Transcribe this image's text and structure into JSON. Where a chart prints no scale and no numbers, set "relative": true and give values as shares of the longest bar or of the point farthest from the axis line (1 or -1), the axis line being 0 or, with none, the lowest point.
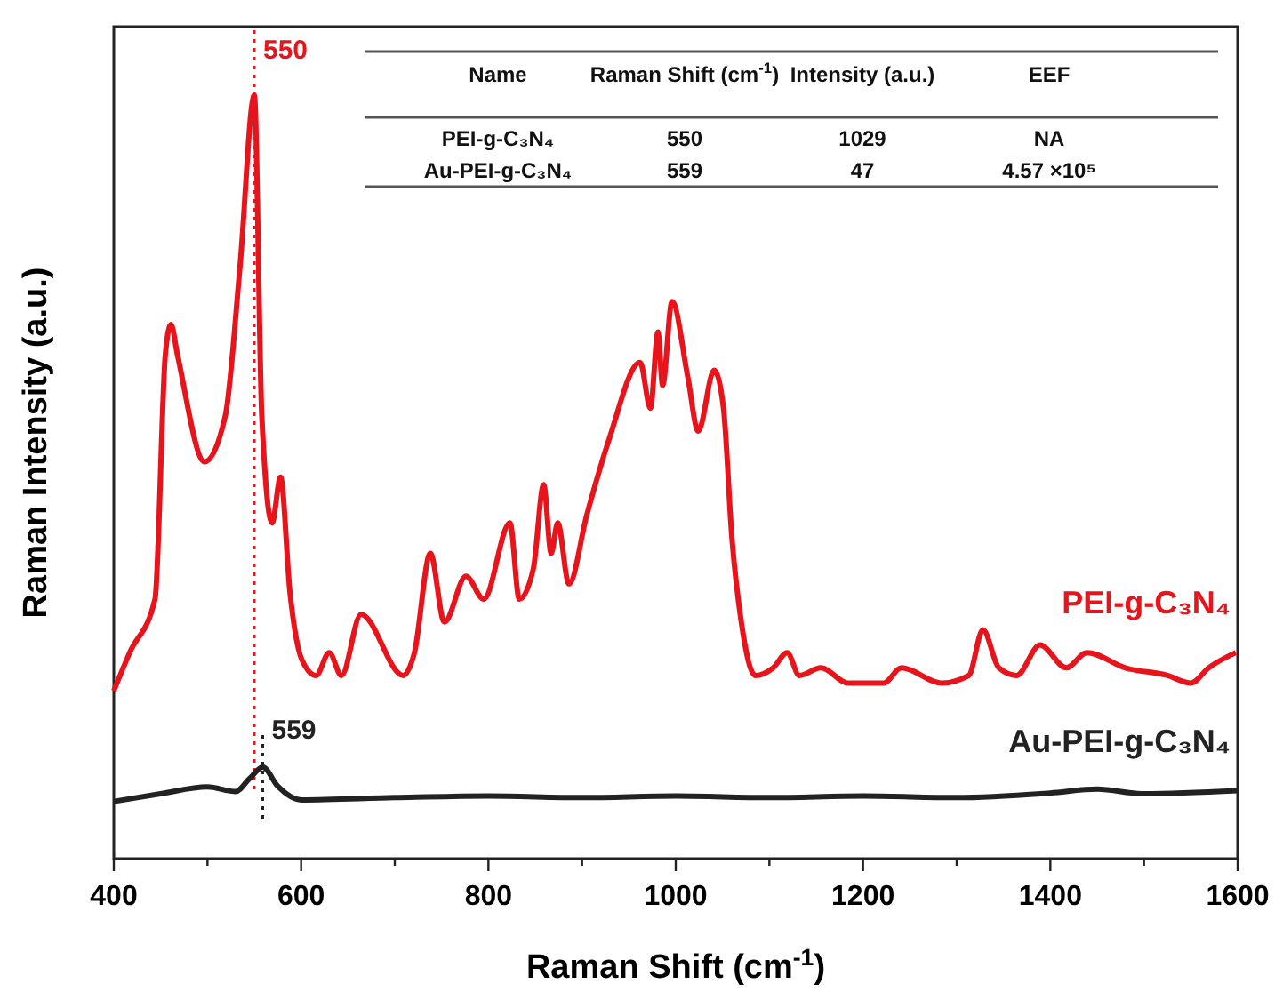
{
  "chart_data": {
    "type": "line",
    "relative": true,
    "xlabel": "Raman Shift (cm$^{-1}$)",
    "ylabel": "Raman Intensity (a.u.)",
    "xlim": [
      400,
      1600
    ],
    "xticks": [
      400,
      {
        "value": 500,
        "label": null
      },
      600,
      {
        "value": 700,
        "label": null
      },
      800,
      {
        "value": 900,
        "label": null
      },
      1000,
      {
        "value": 1100,
        "label": null
      },
      1200,
      {
        "value": 1300,
        "label": null
      },
      1400,
      {
        "value": 1500,
        "label": null
      },
      1600
    ],
    "legend": false,
    "grid": false,
    "series": [
      {
        "name": "PEI-g-C₃N₄",
        "color": "#e8141c",
        "x": [
          400,
          417,
          444,
          455,
          461,
          468,
          497,
          519,
          535,
          550,
          558,
          569,
          578,
          588,
          601,
          616,
          630,
          643,
          664,
          709,
          721,
          738,
          753,
          776,
          795,
          823,
          833,
          848,
          859,
          867,
          874,
          886,
          905,
          929,
          962,
          973,
          981,
          986,
          996,
          1013,
          1024,
          1041,
          1051,
          1060,
          1070,
          1085,
          1104,
          1119,
          1132,
          1155,
          1184,
          1222,
          1241,
          1284,
          1313,
          1328,
          1345,
          1364,
          1389,
          1417,
          1439,
          1480,
          1525,
          1550,
          1569,
          1598
        ],
        "values": [
          0.22,
          0.27,
          0.34,
          0.66,
          0.7,
          0.66,
          0.52,
          0.58,
          0.78,
          1.0,
          0.58,
          0.44,
          0.5,
          0.35,
          0.26,
          0.24,
          0.27,
          0.24,
          0.32,
          0.24,
          0.27,
          0.4,
          0.31,
          0.37,
          0.34,
          0.44,
          0.34,
          0.38,
          0.49,
          0.4,
          0.44,
          0.36,
          0.45,
          0.55,
          0.65,
          0.59,
          0.69,
          0.62,
          0.73,
          0.63,
          0.56,
          0.64,
          0.59,
          0.42,
          0.31,
          0.24,
          0.25,
          0.27,
          0.24,
          0.25,
          0.23,
          0.23,
          0.25,
          0.23,
          0.24,
          0.3,
          0.25,
          0.24,
          0.28,
          0.25,
          0.27,
          0.25,
          0.24,
          0.23,
          0.25,
          0.27
        ]
      },
      {
        "name": "Au-PEI-g-C₃N₄",
        "color": "#222222",
        "x": [
          400,
          450,
          500,
          530,
          545,
          559,
          575,
          600,
          700,
          800,
          900,
          1000,
          1100,
          1200,
          1300,
          1400,
          1450,
          1500,
          1600
        ],
        "values": [
          0.075,
          0.085,
          0.094,
          0.088,
          0.105,
          0.12,
          0.095,
          0.077,
          0.08,
          0.082,
          0.08,
          0.082,
          0.08,
          0.082,
          0.08,
          0.086,
          0.091,
          0.085,
          0.089
        ]
      }
    ],
    "ref_lines": [
      {
        "axis": "x",
        "value": 550,
        "label": "550",
        "color": "#e8141c",
        "line_style": "dotted"
      },
      {
        "axis": "x",
        "value": 559,
        "label": "559",
        "color": "#222222",
        "line_style": "dotted"
      }
    ],
    "annotations": [
      "Name",
      "Raman Shift (cm$^{-1}$)",
      "Intensity (a.u.)",
      "EEF",
      "PEI-g-C₃N₄",
      "550",
      "1029",
      "NA",
      "Au-PEI-g-C₃N₄",
      "559",
      "47",
      "4.57 ×10⁵"
    ]
  }
}
